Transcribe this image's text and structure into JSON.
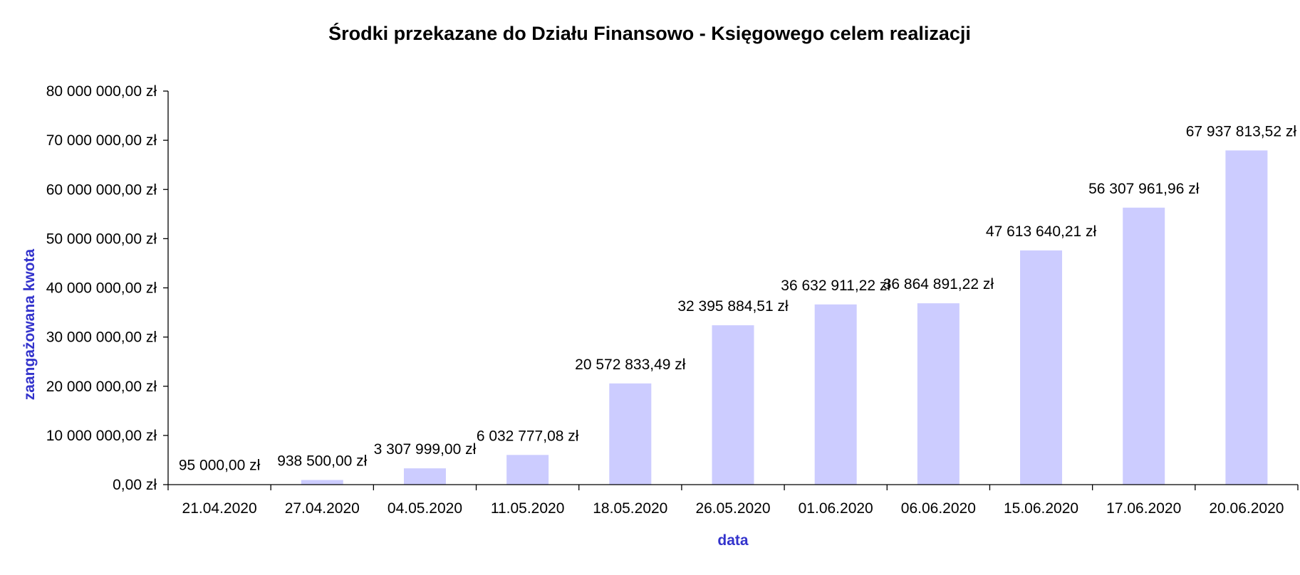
{
  "chart_data": {
    "type": "bar",
    "title": "Środki przekazane do Działu Finansowo - Księgowego celem realizacji",
    "xlabel": "data",
    "ylabel": "zaangażowana kwota",
    "categories": [
      "21.04.2020",
      "27.04.2020",
      "04.05.2020",
      "11.05.2020",
      "18.05.2020",
      "26.05.2020",
      "01.06.2020",
      "06.06.2020",
      "15.06.2020",
      "17.06.2020",
      "20.06.2020"
    ],
    "values": [
      95000.0,
      938500.0,
      3307999.0,
      6032777.08,
      20572833.49,
      32395884.51,
      36632911.22,
      36864891.22,
      47613640.21,
      56307961.96,
      67937813.52
    ],
    "value_labels": [
      "95 000,00 zł",
      "938 500,00 zł",
      "3 307 999,00 zł",
      "6 032 777,08 zł",
      "20 572 833,49 zł",
      "32 395 884,51 zł",
      "36 632 911,22 zł",
      "36 864 891,22 zł",
      "47 613 640,21 zł",
      "56 307 961,96 zł",
      "67 937 813,52 zł"
    ],
    "ylim": [
      0,
      80000000
    ],
    "yticks": [
      0,
      10000000,
      20000000,
      30000000,
      40000000,
      50000000,
      60000000,
      70000000,
      80000000
    ],
    "ytick_labels": [
      "0,00 zł",
      "10 000 000,00 zł",
      "20 000 000,00 zł",
      "30 000 000,00 zł",
      "40 000 000,00 zł",
      "50 000 000,00 zł",
      "60 000 000,00 zł",
      "70 000 000,00 zł",
      "80 000 000,00 zł"
    ],
    "grid": false,
    "legend": "none",
    "bar_color": "#ccccff",
    "axis_title_color": "#3333cc"
  }
}
